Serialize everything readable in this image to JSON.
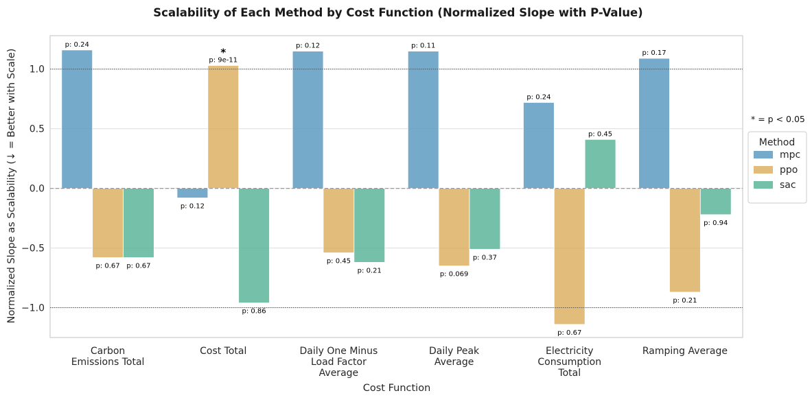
{
  "chart_data": {
    "type": "bar",
    "title": "Scalability of Each Method by Cost Function (Normalized Slope with P-Value)",
    "xlabel": "Cost Function",
    "ylabel": "Normalized Slope as Scalability (↓ = Better with Scale)",
    "ylim": [
      -1.25,
      1.28
    ],
    "yticks": [
      -1.0,
      -0.5,
      0.0,
      0.5,
      1.0
    ],
    "ytick_labels": [
      "−1.0",
      "−0.5",
      "0.0",
      "0.5",
      "1.0"
    ],
    "grid": true,
    "categories": [
      [
        "Carbon",
        "Emissions Total"
      ],
      [
        "Cost Total"
      ],
      [
        "Daily One Minus",
        "Load Factor",
        "Average"
      ],
      [
        "Daily Peak",
        "Average"
      ],
      [
        "Electricity",
        "Consumption",
        "Total"
      ],
      [
        "Ramping Average"
      ]
    ],
    "series": [
      {
        "name": "mpc",
        "color": "#5d9bc2",
        "values": [
          1.16,
          -0.08,
          1.15,
          1.15,
          0.72,
          1.09
        ],
        "pvalues": [
          "p: 0.24",
          "p: 0.12",
          "p: 0.12",
          "p: 0.11",
          "p: 0.24",
          "p: 0.17"
        ],
        "significant": [
          false,
          false,
          false,
          false,
          false,
          false
        ]
      },
      {
        "name": "ppo",
        "color": "#dcb064",
        "values": [
          -0.58,
          1.03,
          -0.54,
          -0.65,
          -1.14,
          -0.87
        ],
        "pvalues": [
          "p: 0.67",
          "p: 9e-11",
          "p: 0.45",
          "p: 0.069",
          "p: 0.67",
          "p: 0.21"
        ],
        "significant": [
          false,
          true,
          false,
          false,
          false,
          false
        ]
      },
      {
        "name": "sac",
        "color": "#5db59a",
        "values": [
          -0.58,
          -0.96,
          -0.62,
          -0.51,
          0.41,
          -0.22
        ],
        "pvalues": [
          "p: 0.67",
          "p: 0.86",
          "p: 0.21",
          "p: 0.37",
          "p: 0.45",
          "p: 0.94"
        ],
        "significant": [
          false,
          false,
          false,
          false,
          false,
          false
        ]
      }
    ],
    "reference_lines": [
      1.0,
      -1.0
    ],
    "significance_marker": "*",
    "significance_note": "* = p < 0.05",
    "legend": {
      "title": "Method",
      "position": "right"
    }
  }
}
